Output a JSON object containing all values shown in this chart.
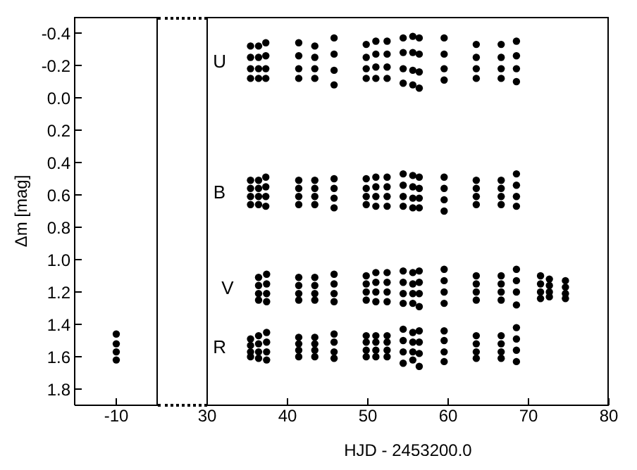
{
  "chart_data": [
    {
      "type": "scatter",
      "ylabel": "Δm [mag]",
      "categories": [
        "-10"
      ],
      "ylim": [
        1.9,
        -0.5
      ],
      "yticks": [
        -0.4,
        -0.2,
        {
          "value": 0,
          "label": "0.0"
        },
        0.2,
        0.4,
        0.6,
        0.8,
        {
          "value": 1,
          "label": "1.0"
        },
        1.2,
        1.4,
        1.6,
        1.8
      ],
      "marker": "circle",
      "series": [
        {
          "color": "#000000",
          "x": [
            "-10",
            "-10",
            "-10",
            "-10"
          ],
          "values": [
            1.46,
            1.52,
            1.57,
            1.62
          ]
        }
      ]
    },
    {
      "type": "scatter",
      "xlabel": "HJD - 2453200.0",
      "xlim": [
        30,
        80
      ],
      "xticks": [
        30,
        40,
        50,
        60,
        70,
        80
      ],
      "ylim": [
        1.9,
        -0.5
      ],
      "yticks": [
        -0.4,
        -0.2,
        0,
        0.2,
        0.4,
        0.6,
        0.8,
        1,
        1.2,
        1.4,
        1.6,
        1.8
      ],
      "tick_labels": "x",
      "marker": "circle",
      "series": [
        {
          "name": "U",
          "color": "#000000",
          "x": [
            35.4,
            35.4,
            35.4,
            35.4,
            36.4,
            36.4,
            36.4,
            36.4,
            37.3,
            37.3,
            37.3,
            37.3,
            41.4,
            41.4,
            41.4,
            41.4,
            43.4,
            43.4,
            43.4,
            43.4,
            45.8,
            45.8,
            45.8,
            45.8,
            49.8,
            49.8,
            49.8,
            49.8,
            51.0,
            51.0,
            51.0,
            51.0,
            52.4,
            52.4,
            52.4,
            52.4,
            54.4,
            54.4,
            54.4,
            54.4,
            55.6,
            55.6,
            55.6,
            55.6,
            56.4,
            56.4,
            56.4,
            56.4,
            59.5,
            59.5,
            59.5,
            59.5,
            63.5,
            63.5,
            63.5,
            63.5,
            66.6,
            66.6,
            66.6,
            66.6,
            68.5,
            68.5,
            68.5,
            68.5
          ],
          "values": [
            -0.32,
            -0.25,
            -0.18,
            -0.12,
            -0.32,
            -0.25,
            -0.18,
            -0.12,
            -0.34,
            -0.26,
            -0.18,
            -0.12,
            -0.34,
            -0.26,
            -0.18,
            -0.12,
            -0.32,
            -0.25,
            -0.18,
            -0.12,
            -0.37,
            -0.27,
            -0.17,
            -0.08,
            -0.33,
            -0.25,
            -0.18,
            -0.12,
            -0.35,
            -0.27,
            -0.19,
            -0.12,
            -0.35,
            -0.27,
            -0.19,
            -0.12,
            -0.37,
            -0.28,
            -0.18,
            -0.09,
            -0.38,
            -0.28,
            -0.17,
            -0.08,
            -0.37,
            -0.27,
            -0.16,
            -0.06,
            -0.37,
            -0.27,
            -0.18,
            -0.11,
            -0.33,
            -0.25,
            -0.18,
            -0.12,
            -0.33,
            -0.25,
            -0.18,
            -0.12,
            -0.35,
            -0.26,
            -0.18,
            -0.1
          ]
        },
        {
          "name": "B",
          "color": "#000000",
          "x": [
            35.4,
            35.4,
            35.4,
            35.4,
            36.4,
            36.4,
            36.4,
            36.4,
            37.3,
            37.3,
            37.3,
            37.3,
            41.4,
            41.4,
            41.4,
            41.4,
            43.4,
            43.4,
            43.4,
            43.4,
            45.8,
            45.8,
            45.8,
            45.8,
            49.8,
            49.8,
            49.8,
            49.8,
            51.0,
            51.0,
            51.0,
            51.0,
            52.4,
            52.4,
            52.4,
            52.4,
            54.4,
            54.4,
            54.4,
            54.4,
            55.6,
            55.6,
            55.6,
            55.6,
            56.4,
            56.4,
            56.4,
            56.4,
            59.5,
            59.5,
            59.5,
            59.5,
            63.5,
            63.5,
            63.5,
            63.5,
            66.6,
            66.6,
            66.6,
            66.6,
            68.5,
            68.5,
            68.5,
            68.5
          ],
          "values": [
            0.51,
            0.56,
            0.61,
            0.66,
            0.51,
            0.56,
            0.61,
            0.66,
            0.49,
            0.55,
            0.61,
            0.67,
            0.51,
            0.56,
            0.61,
            0.66,
            0.51,
            0.56,
            0.61,
            0.66,
            0.5,
            0.56,
            0.62,
            0.68,
            0.5,
            0.56,
            0.61,
            0.66,
            0.49,
            0.55,
            0.61,
            0.67,
            0.49,
            0.55,
            0.61,
            0.67,
            0.47,
            0.54,
            0.61,
            0.67,
            0.48,
            0.55,
            0.62,
            0.68,
            0.49,
            0.56,
            0.62,
            0.68,
            0.49,
            0.56,
            0.63,
            0.7,
            0.51,
            0.56,
            0.61,
            0.66,
            0.51,
            0.56,
            0.61,
            0.66,
            0.47,
            0.54,
            0.61,
            0.67
          ]
        },
        {
          "name": "V",
          "color": "#000000",
          "x": [
            36.4,
            36.4,
            36.4,
            36.4,
            37.4,
            37.4,
            37.4,
            37.4,
            41.4,
            41.4,
            41.4,
            41.4,
            43.4,
            43.4,
            43.4,
            43.4,
            45.8,
            45.8,
            45.8,
            45.8,
            49.8,
            49.8,
            49.8,
            49.8,
            51.0,
            51.0,
            51.0,
            51.0,
            52.4,
            52.4,
            52.4,
            52.4,
            54.4,
            54.4,
            54.4,
            54.4,
            55.6,
            55.6,
            55.6,
            55.6,
            56.4,
            56.4,
            56.4,
            56.4,
            59.5,
            59.5,
            59.5,
            59.5,
            63.5,
            63.5,
            63.5,
            63.5,
            66.6,
            66.6,
            66.6,
            66.6,
            68.5,
            68.5,
            68.5,
            68.5,
            71.5,
            71.5,
            71.5,
            71.5,
            72.6,
            72.6,
            72.6,
            72.6,
            74.6,
            74.6,
            74.6,
            74.6
          ],
          "values": [
            1.11,
            1.16,
            1.21,
            1.25,
            1.09,
            1.15,
            1.21,
            1.26,
            1.11,
            1.16,
            1.21,
            1.25,
            1.11,
            1.16,
            1.21,
            1.25,
            1.09,
            1.15,
            1.21,
            1.26,
            1.1,
            1.15,
            1.2,
            1.25,
            1.08,
            1.14,
            1.2,
            1.26,
            1.08,
            1.14,
            1.2,
            1.26,
            1.07,
            1.14,
            1.21,
            1.27,
            1.08,
            1.15,
            1.21,
            1.27,
            1.07,
            1.14,
            1.21,
            1.29,
            1.06,
            1.13,
            1.2,
            1.27,
            1.1,
            1.15,
            1.2,
            1.25,
            1.1,
            1.15,
            1.2,
            1.25,
            1.06,
            1.13,
            1.2,
            1.28,
            1.1,
            1.15,
            1.2,
            1.24,
            1.12,
            1.16,
            1.2,
            1.23,
            1.13,
            1.17,
            1.21,
            1.24
          ]
        },
        {
          "name": "R",
          "color": "#000000",
          "x": [
            35.4,
            35.4,
            35.4,
            35.4,
            36.4,
            36.4,
            36.4,
            36.4,
            37.4,
            37.4,
            37.4,
            37.4,
            41.4,
            41.4,
            41.4,
            41.4,
            43.4,
            43.4,
            43.4,
            43.4,
            45.8,
            45.8,
            45.8,
            45.8,
            49.8,
            49.8,
            49.8,
            49.8,
            51.0,
            51.0,
            51.0,
            51.0,
            52.4,
            52.4,
            52.4,
            52.4,
            54.4,
            54.4,
            54.4,
            54.4,
            55.6,
            55.6,
            55.6,
            55.6,
            56.4,
            56.4,
            56.4,
            56.4,
            59.5,
            59.5,
            59.5,
            59.5,
            63.5,
            63.5,
            63.5,
            63.5,
            66.6,
            66.6,
            66.6,
            66.6,
            68.5,
            68.5,
            68.5,
            68.5
          ],
          "values": [
            1.49,
            1.53,
            1.57,
            1.6,
            1.47,
            1.52,
            1.57,
            1.61,
            1.45,
            1.51,
            1.57,
            1.62,
            1.48,
            1.52,
            1.56,
            1.6,
            1.48,
            1.52,
            1.56,
            1.6,
            1.46,
            1.51,
            1.57,
            1.61,
            1.47,
            1.51,
            1.56,
            1.6,
            1.47,
            1.51,
            1.56,
            1.6,
            1.47,
            1.51,
            1.56,
            1.6,
            1.43,
            1.5,
            1.57,
            1.64,
            1.45,
            1.51,
            1.57,
            1.62,
            1.44,
            1.51,
            1.58,
            1.66,
            1.44,
            1.5,
            1.57,
            1.63,
            1.47,
            1.52,
            1.57,
            1.61,
            1.47,
            1.52,
            1.57,
            1.61,
            1.42,
            1.49,
            1.56,
            1.63
          ]
        }
      ]
    }
  ]
}
